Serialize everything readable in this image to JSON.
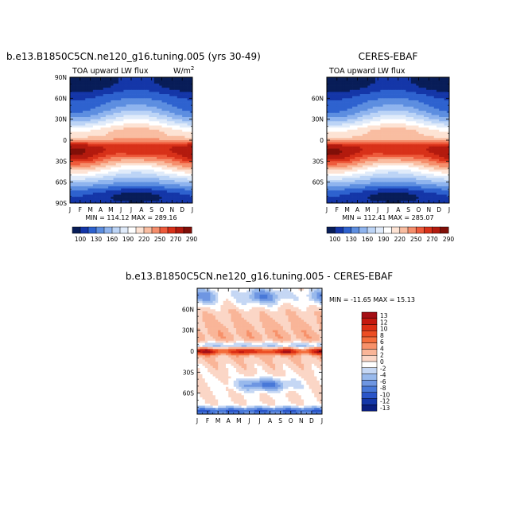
{
  "panels": [
    {
      "id": "model",
      "title": "b.e13.B1850C5CN.ne120_g16.tuning.005 (yrs 30-49)",
      "subtitle_left": "TOA upward LW flux",
      "subtitle_right_base": "W/m",
      "subtitle_right_sup": "2",
      "stats": "MIN = 114.12 MAX = 289.16"
    },
    {
      "id": "obs",
      "title": "CERES-EBAF",
      "subtitle_left": "TOA upward LW flux",
      "subtitle_right_base": "",
      "subtitle_right_sup": "",
      "stats": "MIN = 112.41 MAX = 285.07"
    },
    {
      "id": "diff",
      "title": "b.e13.B1850C5CN.ne120_g16.tuning.005 - CERES-EBAF",
      "subtitle_left": "",
      "subtitle_right_base": "",
      "subtitle_right_sup": "",
      "stats": "MIN = -11.65 MAX = 15.13"
    }
  ],
  "chart_data": [
    {
      "type": "heatmap",
      "panel": "model",
      "title": "b.e13.B1850C5CN.ne120_g16.tuning.005 (yrs 30-49)",
      "variable": "TOA upward LW flux",
      "units": "W/m2",
      "x_tick_labels": [
        "J",
        "F",
        "M",
        "A",
        "M",
        "J",
        "J",
        "A",
        "S",
        "O",
        "N",
        "D",
        "J"
      ],
      "y_tick_labels": [
        "90N",
        "60N",
        "30N",
        "0",
        "30S",
        "60S",
        "90S"
      ],
      "ylim": [
        -90,
        90
      ],
      "min": 114.12,
      "max": 289.16,
      "colorbar_levels": [
        100,
        130,
        160,
        190,
        220,
        250,
        270,
        290
      ],
      "colorbar_colors": [
        "#081d58",
        "#1436a8",
        "#2e62cf",
        "#5d8ee0",
        "#8fb4ee",
        "#bcd4f6",
        "#e0ebfa",
        "#ffffff",
        "#fde3d4",
        "#f9bda1",
        "#f58e6c",
        "#ee5a3b",
        "#d83119",
        "#b31a0e",
        "#800f08"
      ]
    },
    {
      "type": "heatmap",
      "panel": "obs",
      "title": "CERES-EBAF",
      "variable": "TOA upward LW flux",
      "x_tick_labels": [
        "J",
        "F",
        "M",
        "A",
        "M",
        "J",
        "J",
        "A",
        "S",
        "O",
        "N",
        "D",
        "J"
      ],
      "y_tick_labels": [
        "60N",
        "30N",
        "0",
        "30S",
        "60S"
      ],
      "ylim": [
        -90,
        90
      ],
      "min": 112.41,
      "max": 285.07,
      "colorbar_levels": [
        100,
        130,
        160,
        190,
        220,
        250,
        270,
        290
      ],
      "colorbar_colors": [
        "#081d58",
        "#1436a8",
        "#2e62cf",
        "#5d8ee0",
        "#8fb4ee",
        "#bcd4f6",
        "#e0ebfa",
        "#ffffff",
        "#fde3d4",
        "#f9bda1",
        "#f58e6c",
        "#ee5a3b",
        "#d83119",
        "#b31a0e",
        "#800f08"
      ]
    },
    {
      "type": "heatmap",
      "panel": "diff",
      "title": "b.e13.B1850C5CN.ne120_g16.tuning.005 - CERES-EBAF",
      "x_tick_labels": [
        "J",
        "F",
        "M",
        "A",
        "M",
        "J",
        "J",
        "A",
        "S",
        "O",
        "N",
        "D",
        "J"
      ],
      "y_tick_labels": [
        "60N",
        "30N",
        "0",
        "30S",
        "60S"
      ],
      "ylim": [
        -90,
        90
      ],
      "min": -11.65,
      "max": 15.13,
      "colorbar_levels": [
        13,
        12,
        10,
        8,
        6,
        4,
        2,
        0,
        -2,
        -4,
        -6,
        -8,
        -10,
        -12,
        -13
      ],
      "colorbar_colors": [
        "#a50f15",
        "#c4180f",
        "#dc2e14",
        "#ec4d23",
        "#f46d3c",
        "#f7916a",
        "#f9b598",
        "#fbd6c6",
        "#ffffff",
        "#c5d7f4",
        "#98b9ec",
        "#6e96e2",
        "#4878d8",
        "#2a55c8",
        "#1437a8",
        "#0a1f80"
      ]
    }
  ]
}
